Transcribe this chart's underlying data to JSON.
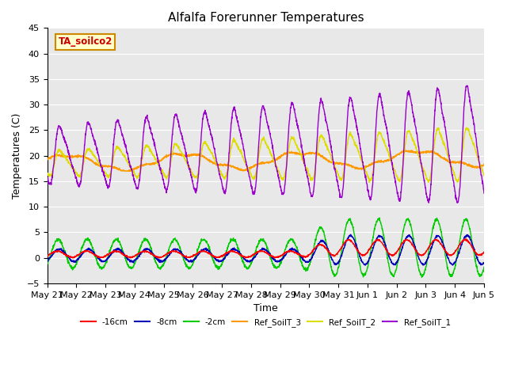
{
  "title": "Alfalfa Forerunner Temperatures",
  "xlabel": "Time",
  "ylabel": "Temperatures (C)",
  "ylim": [
    -5,
    45
  ],
  "annotation": "TA_soilco2",
  "legend_entries": [
    "-16cm",
    "-8cm",
    "-2cm",
    "Ref_SoilT_3",
    "Ref_SoilT_2",
    "Ref_SoilT_1"
  ],
  "legend_colors": [
    "#ff0000",
    "#0000bb",
    "#00cc00",
    "#ff9900",
    "#dddd00",
    "#9900cc"
  ],
  "plot_bg_color": "#e8e8e8",
  "tick_labels": [
    "May 21",
    "May 22",
    "May 23",
    "May 24",
    "May 25",
    "May 26",
    "May 27",
    "May 28",
    "May 29",
    "May 30",
    "May 31",
    "Jun 1",
    "Jun 2",
    "Jun 3",
    "Jun 4",
    "Jun 5"
  ],
  "grid_color": "#ffffff",
  "annotation_facecolor": "#ffffcc",
  "annotation_edgecolor": "#cc8800",
  "annotation_textcolor": "#cc0000"
}
